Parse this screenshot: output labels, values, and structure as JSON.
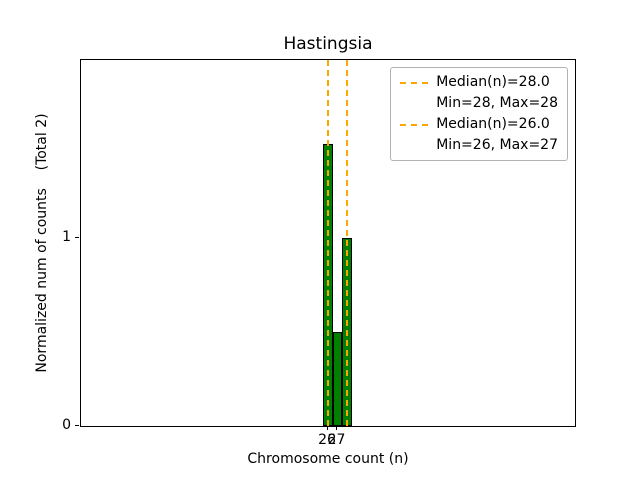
{
  "chart_data": {
    "type": "bar",
    "title": "Hastingsia",
    "xlabel": "Chromosome count (n)",
    "ylabel": "Normalized num of counts    (Total 2)",
    "xlim": [
      0,
      52
    ],
    "ylim": [
      0,
      1.95
    ],
    "grid": false,
    "bar_color": "#008000",
    "bar_edge_color": "#000000",
    "median_line_color": "#ffa500",
    "bars": [
      {
        "x": 26,
        "width": 1,
        "height": 1.5
      },
      {
        "x": 27,
        "width": 1,
        "height": 0.5
      },
      {
        "x": 28,
        "width": 1,
        "height": 1.0
      }
    ],
    "median_lines": [
      {
        "x": 28,
        "label": "Median(n)=28.0"
      },
      {
        "x": 26,
        "label": "Median(n)=26.0"
      }
    ],
    "xticks": [
      {
        "value": 26,
        "label": "26"
      },
      {
        "value": 27,
        "label": "27"
      }
    ],
    "yticks": [
      {
        "value": 0,
        "label": "0"
      },
      {
        "value": 1,
        "label": "1"
      }
    ],
    "legend": {
      "position": "upper-right",
      "entries": [
        {
          "sample": "dashed-line",
          "label": "Median(n)=28.0"
        },
        {
          "sample": "none",
          "label": "Min=28, Max=28"
        },
        {
          "sample": "dashed-line",
          "label": "Median(n)=26.0"
        },
        {
          "sample": "none",
          "label": "Min=26, Max=27"
        }
      ]
    }
  }
}
